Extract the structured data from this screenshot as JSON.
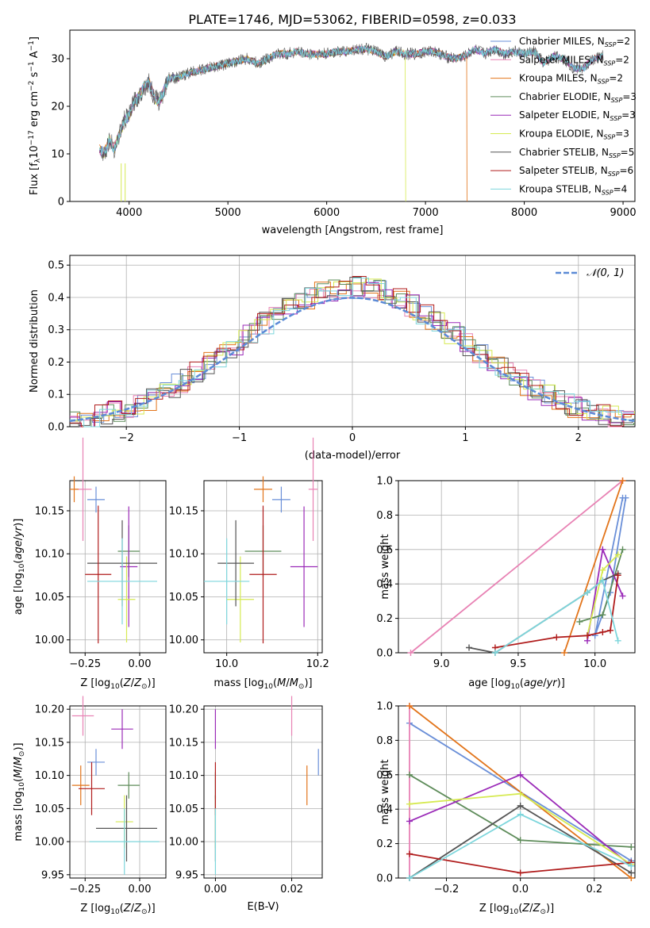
{
  "figure": {
    "title": "PLATE=1746, MJD=53062, FIBERID=0598, z=0.033"
  },
  "colors": {
    "Chabrier MILES": "#6a8fd8",
    "Salpeter MILES": "#e882b4",
    "Kroupa MILES": "#e2741a",
    "Chabrier ELODIE": "#5e8c5a",
    "Salpeter ELODIE": "#9b2bb8",
    "Kroupa ELODIE": "#d6ea52",
    "Chabrier STELIB": "#555555",
    "Salpeter STELIB": "#b01c1c",
    "Kroupa STELIB": "#7dd6dc",
    "gaussian": "#5b8ad6",
    "grid": "#b0b0b0"
  },
  "chart_data": [
    {
      "id": "spectrum",
      "type": "line",
      "title": "PLATE=1746, MJD=53062, FIBERID=0598, z=0.033",
      "xlabel": "wavelength [Angstrom, rest frame]",
      "ylabel": "Flux [f_λ 10^-17 erg cm^-2 s^-1 A^-1]",
      "xlim": [
        3400,
        9120
      ],
      "ylim": [
        0,
        36
      ],
      "xticks": [
        4000,
        5000,
        6000,
        7000,
        8000,
        9000
      ],
      "yticks": [
        0,
        10,
        20,
        30
      ],
      "grid": false,
      "legend": "top-right",
      "legend_entries": [
        "Chabrier MILES, N_SSP=2",
        "Salpeter MILES, N_SSP=2",
        "Kroupa MILES, N_SSP=2",
        "Chabrier ELODIE, N_SSP=3",
        "Salpeter ELODIE, N_SSP=3",
        "Kroupa ELODIE, N_SSP=3",
        "Chabrier STELIB, N_SSP=5",
        "Salpeter STELIB, N_SSP=6",
        "Kroupa STELIB, N_SSP=4"
      ],
      "x": [
        3700,
        3750,
        3800,
        3850,
        3900,
        3950,
        4000,
        4050,
        4100,
        4150,
        4200,
        4250,
        4300,
        4350,
        4400,
        4500,
        4600,
        4700,
        4800,
        4900,
        5000,
        5100,
        5200,
        5300,
        5400,
        5500,
        5600,
        5700,
        5800,
        5900,
        6000,
        6100,
        6200,
        6300,
        6400,
        6500,
        6600,
        6700,
        6800,
        6900,
        7000,
        7100,
        7200,
        7300,
        7400,
        7500,
        7600,
        7700,
        7800,
        7900,
        8000,
        8100,
        8200,
        8300,
        8400,
        8500,
        8600,
        8700,
        8800
      ],
      "y": [
        11,
        10,
        13,
        11,
        14,
        17,
        18,
        21,
        22,
        24,
        25,
        22,
        21,
        23,
        26,
        26,
        27,
        27.5,
        28,
        28.5,
        29,
        29.5,
        30,
        29,
        30,
        31,
        31,
        31.5,
        31,
        31,
        31,
        31.5,
        31.5,
        32,
        32,
        31.5,
        30.5,
        31.5,
        31,
        31,
        31.5,
        31.5,
        30.5,
        30,
        30.5,
        32,
        31,
        32,
        31,
        31.5,
        31,
        31.5,
        29,
        30.5,
        30,
        28,
        28,
        30,
        30.5
      ],
      "truncations": [
        {
          "series": "Kroupa MILES",
          "x_end": 7420
        },
        {
          "series": "Kroupa ELODIE",
          "x_end": 6800
        }
      ],
      "drops": [
        3920,
        3960,
        6800,
        7420
      ]
    },
    {
      "id": "residuals",
      "type": "line",
      "xlabel": "(data-model)/error",
      "ylabel": "Normed distribution",
      "xlim": [
        -2.5,
        2.5
      ],
      "ylim": [
        0,
        0.53
      ],
      "xticks": [
        -2,
        -1,
        0,
        1,
        2
      ],
      "yticks": [
        0.0,
        0.1,
        0.2,
        0.3,
        0.4,
        0.5
      ],
      "grid": true,
      "legend": "top-right",
      "gaussian_label": "N(0,1)",
      "note": "9 step histograms (one per model) plus standard normal dashed curve"
    },
    {
      "id": "age_vs_Z",
      "type": "scatter",
      "xlabel": "Z [log10(Z/Z⊙)]",
      "ylabel": "age [log10(age/yr)]",
      "xlim": [
        -0.32,
        0.12
      ],
      "ylim": [
        9.985,
        10.185
      ],
      "xticks": [
        -0.25,
        0.0
      ],
      "yticks": [
        10.0,
        10.05,
        10.1,
        10.15
      ],
      "grid": true,
      "points": [
        {
          "series": "Chabrier MILES",
          "x": -0.2,
          "y": 10.163,
          "xerr": 0.04,
          "yerr": 0.015
        },
        {
          "series": "Salpeter MILES",
          "x": -0.26,
          "y": 10.175,
          "xerr": 0.04,
          "yerr": 0.06
        },
        {
          "series": "Kroupa MILES",
          "x": -0.3,
          "y": 10.175,
          "xerr": 0.02,
          "yerr": 0.015
        },
        {
          "series": "Chabrier ELODIE",
          "x": -0.05,
          "y": 10.103,
          "xerr": 0.05,
          "yerr": 0.03
        },
        {
          "series": "Salpeter ELODIE",
          "x": -0.05,
          "y": 10.085,
          "xerr": 0.04,
          "yerr": 0.07
        },
        {
          "series": "Kroupa ELODIE",
          "x": -0.06,
          "y": 10.047,
          "xerr": 0.04,
          "yerr": 0.05
        },
        {
          "series": "Chabrier STELIB",
          "x": -0.08,
          "y": 10.089,
          "xerr": 0.16,
          "yerr": 0.05
        },
        {
          "series": "Salpeter STELIB",
          "x": -0.19,
          "y": 10.076,
          "xerr": 0.06,
          "yerr": 0.08
        },
        {
          "series": "Kroupa STELIB",
          "x": -0.08,
          "y": 10.068,
          "xerr": 0.16,
          "yerr": 0.05
        }
      ]
    },
    {
      "id": "age_vs_mass",
      "type": "scatter",
      "xlabel": "mass [log10(M/M⊙)]",
      "ylabel": "",
      "xlim": [
        9.95,
        10.21
      ],
      "ylim": [
        9.985,
        10.185
      ],
      "xticks": [
        10.0,
        10.2
      ],
      "yticks": [
        10.0,
        10.05,
        10.1,
        10.15
      ],
      "grid": true,
      "points": [
        {
          "series": "Chabrier MILES",
          "x": 10.12,
          "y": 10.163,
          "xerr": 0.02,
          "yerr": 0.015
        },
        {
          "series": "Salpeter MILES",
          "x": 10.19,
          "y": 10.175,
          "xerr": 0.01,
          "yerr": 0.06
        },
        {
          "series": "Kroupa MILES",
          "x": 10.08,
          "y": 10.175,
          "xerr": 0.02,
          "yerr": 0.015
        },
        {
          "series": "Chabrier ELODIE",
          "x": 10.08,
          "y": 10.103,
          "xerr": 0.04,
          "yerr": 0.03
        },
        {
          "series": "Salpeter ELODIE",
          "x": 10.17,
          "y": 10.085,
          "xerr": 0.03,
          "yerr": 0.07
        },
        {
          "series": "Kroupa ELODIE",
          "x": 10.03,
          "y": 10.047,
          "xerr": 0.03,
          "yerr": 0.05
        },
        {
          "series": "Chabrier STELIB",
          "x": 10.02,
          "y": 10.089,
          "xerr": 0.04,
          "yerr": 0.05
        },
        {
          "series": "Salpeter STELIB",
          "x": 10.08,
          "y": 10.076,
          "xerr": 0.03,
          "yerr": 0.08
        },
        {
          "series": "Kroupa STELIB",
          "x": 10.0,
          "y": 10.068,
          "xerr": 0.05,
          "yerr": 0.05
        }
      ]
    },
    {
      "id": "weight_vs_age",
      "type": "line",
      "xlabel": "age [log10(age/yr)]",
      "ylabel": "mass weight",
      "xlim": [
        8.72,
        10.26
      ],
      "ylim": [
        0.0,
        1.0
      ],
      "xticks": [
        9.0,
        9.5,
        10.0
      ],
      "yticks": [
        0.0,
        0.2,
        0.4,
        0.6,
        0.8,
        1.0
      ],
      "grid": true,
      "series": [
        {
          "name": "Chabrier MILES",
          "x": [
            10.18,
            10.0,
            10.1,
            10.2
          ],
          "y": [
            0.9,
            0.1,
            0.35,
            0.9
          ]
        },
        {
          "name": "Salpeter MILES",
          "x": [
            8.8,
            10.18
          ],
          "y": [
            0.0,
            1.0
          ]
        },
        {
          "name": "Kroupa MILES",
          "x": [
            9.8,
            10.18
          ],
          "y": [
            0.0,
            1.0
          ]
        },
        {
          "name": "Chabrier ELODIE",
          "x": [
            9.9,
            10.05,
            10.18
          ],
          "y": [
            0.18,
            0.22,
            0.6
          ]
        },
        {
          "name": "Salpeter ELODIE",
          "x": [
            9.95,
            10.05,
            10.18
          ],
          "y": [
            0.07,
            0.6,
            0.33
          ]
        },
        {
          "name": "Kroupa ELODIE",
          "x": [
            9.95,
            10.05,
            10.15
          ],
          "y": [
            0.1,
            0.48,
            0.57
          ]
        },
        {
          "name": "Chabrier STELIB",
          "x": [
            9.18,
            9.35,
            9.95,
            10.05,
            10.15
          ],
          "y": [
            0.03,
            0.0,
            0.35,
            0.42,
            0.46
          ]
        },
        {
          "name": "Salpeter STELIB",
          "x": [
            9.35,
            9.75,
            9.95,
            10.05,
            10.1,
            10.15
          ],
          "y": [
            0.03,
            0.09,
            0.1,
            0.12,
            0.13,
            0.45
          ]
        },
        {
          "name": "Kroupa STELIB",
          "x": [
            9.35,
            9.95,
            10.05,
            10.15
          ],
          "y": [
            0.0,
            0.35,
            0.42,
            0.07
          ]
        }
      ]
    },
    {
      "id": "mass_vs_Z",
      "type": "scatter",
      "xlabel": "Z [log10(Z/Z⊙)]",
      "ylabel": "mass [log10(M/M⊙)]",
      "xlim": [
        -0.32,
        0.12
      ],
      "ylim": [
        9.945,
        10.205
      ],
      "xticks": [
        -0.25,
        0.0
      ],
      "yticks": [
        9.95,
        10.0,
        10.05,
        10.1,
        10.15,
        10.2
      ],
      "grid": true,
      "points": [
        {
          "series": "Chabrier MILES",
          "x": -0.2,
          "y": 10.12,
          "xerr": 0.04,
          "yerr": 0.02
        },
        {
          "series": "Salpeter MILES",
          "x": -0.26,
          "y": 10.19,
          "xerr": 0.05,
          "yerr": 0.03
        },
        {
          "series": "Kroupa MILES",
          "x": -0.27,
          "y": 10.085,
          "xerr": 0.04,
          "yerr": 0.03
        },
        {
          "series": "Chabrier ELODIE",
          "x": -0.05,
          "y": 10.085,
          "xerr": 0.05,
          "yerr": 0.02
        },
        {
          "series": "Salpeter ELODIE",
          "x": -0.08,
          "y": 10.17,
          "xerr": 0.05,
          "yerr": 0.03
        },
        {
          "series": "Kroupa ELODIE",
          "x": -0.07,
          "y": 10.03,
          "xerr": 0.04,
          "yerr": 0.04
        },
        {
          "series": "Chabrier STELIB",
          "x": -0.06,
          "y": 10.02,
          "xerr": 0.14,
          "yerr": 0.05
        },
        {
          "series": "Salpeter STELIB",
          "x": -0.22,
          "y": 10.08,
          "xerr": 0.06,
          "yerr": 0.04
        },
        {
          "series": "Kroupa STELIB",
          "x": -0.07,
          "y": 10.0,
          "xerr": 0.16,
          "yerr": 0.05
        }
      ]
    },
    {
      "id": "mass_vs_EBV",
      "type": "scatter",
      "xlabel": "E(B-V)",
      "ylabel": "",
      "xlim": [
        -0.003,
        0.028
      ],
      "ylim": [
        9.945,
        10.205
      ],
      "xticks": [
        0.0,
        0.02
      ],
      "yticks": [
        9.95,
        10.0,
        10.05,
        10.1,
        10.15,
        10.2
      ],
      "grid": true,
      "points": [
        {
          "series": "Chabrier MILES",
          "x": 0.027,
          "y": 10.12,
          "xerr": 0,
          "yerr": 0.02
        },
        {
          "series": "Salpeter MILES",
          "x": 0.02,
          "y": 10.19,
          "xerr": 0,
          "yerr": 0.03
        },
        {
          "series": "Kroupa MILES",
          "x": 0.024,
          "y": 10.085,
          "xerr": 0,
          "yerr": 0.03
        },
        {
          "series": "Chabrier ELODIE",
          "x": 0.0,
          "y": 10.085,
          "xerr": 0,
          "yerr": 0.02
        },
        {
          "series": "Salpeter ELODIE",
          "x": 0.0,
          "y": 10.17,
          "xerr": 0,
          "yerr": 0.03
        },
        {
          "series": "Kroupa ELODIE",
          "x": 0.0,
          "y": 10.03,
          "xerr": 0,
          "yerr": 0.04
        },
        {
          "series": "Chabrier STELIB",
          "x": 0.0,
          "y": 10.02,
          "xerr": 0,
          "yerr": 0.05
        },
        {
          "series": "Salpeter STELIB",
          "x": 0.0,
          "y": 10.08,
          "xerr": 0,
          "yerr": 0.04
        },
        {
          "series": "Kroupa STELIB",
          "x": 0.0,
          "y": 10.0,
          "xerr": 0,
          "yerr": 0.05
        }
      ]
    },
    {
      "id": "weight_vs_Z",
      "type": "line",
      "xlabel": "Z [log10(Z/Z⊙)]",
      "ylabel": "mass weight",
      "xlim": [
        -0.33,
        0.31
      ],
      "ylim": [
        0.0,
        1.0
      ],
      "xticks": [
        -0.2,
        0.0,
        0.2
      ],
      "yticks": [
        0.0,
        0.2,
        0.4,
        0.6,
        0.8,
        1.0
      ],
      "grid": true,
      "series": [
        {
          "name": "Chabrier MILES",
          "x": [
            -0.3,
            0.3
          ],
          "y": [
            0.9,
            0.1
          ]
        },
        {
          "name": "Salpeter MILES",
          "x": [
            -0.3,
            -0.3
          ],
          "y": [
            0.0,
            1.0
          ]
        },
        {
          "name": "Kroupa MILES",
          "x": [
            -0.3,
            0.3
          ],
          "y": [
            1.0,
            0.0
          ]
        },
        {
          "name": "Chabrier ELODIE",
          "x": [
            -0.3,
            0.0,
            0.3
          ],
          "y": [
            0.6,
            0.22,
            0.18
          ]
        },
        {
          "name": "Salpeter ELODIE",
          "x": [
            -0.3,
            0.0,
            0.3
          ],
          "y": [
            0.33,
            0.6,
            0.07
          ]
        },
        {
          "name": "Kroupa ELODIE",
          "x": [
            -0.3,
            0.0,
            0.3
          ],
          "y": [
            0.43,
            0.49,
            0.08
          ]
        },
        {
          "name": "Chabrier STELIB",
          "x": [
            -0.3,
            0.0,
            0.3
          ],
          "y": [
            0.0,
            0.42,
            0.03
          ]
        },
        {
          "name": "Salpeter STELIB",
          "x": [
            -0.3,
            0.0,
            0.3
          ],
          "y": [
            0.14,
            0.03,
            0.09
          ]
        },
        {
          "name": "Kroupa STELIB",
          "x": [
            -0.3,
            0.0,
            0.3
          ],
          "y": [
            0.0,
            0.37,
            0.07
          ]
        }
      ]
    }
  ]
}
